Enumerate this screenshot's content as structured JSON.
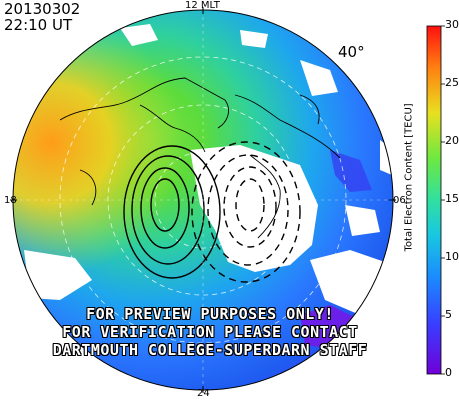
{
  "header": {
    "date": "20130302",
    "time": "22:10 UT",
    "latitude_label": "40°"
  },
  "mlt_labels": {
    "top": "12 MLT",
    "left": "18",
    "right": "06",
    "bottom": "24"
  },
  "watermark": {
    "line1": "FOR PREVIEW PURPOSES ONLY!",
    "line2": "FOR VERIFICATION PLEASE CONTACT",
    "line3": "DARTMOUTH COLLEGE-SUPERDARN STAFF"
  },
  "colorbar": {
    "label": "Total Electron Content [TECU]",
    "ticks": [
      "0",
      "5",
      "10",
      "15",
      "20",
      "25",
      "30"
    ],
    "range": [
      0,
      30
    ],
    "colors": [
      "#6a00d6",
      "#3a3cff",
      "#1aa0ff",
      "#28e0c8",
      "#5ee84a",
      "#e8e020",
      "#ff7a10",
      "#ff1010"
    ]
  },
  "colors": {
    "background": "#ffffff",
    "contour": "#000000",
    "coastline": "#000000"
  }
}
